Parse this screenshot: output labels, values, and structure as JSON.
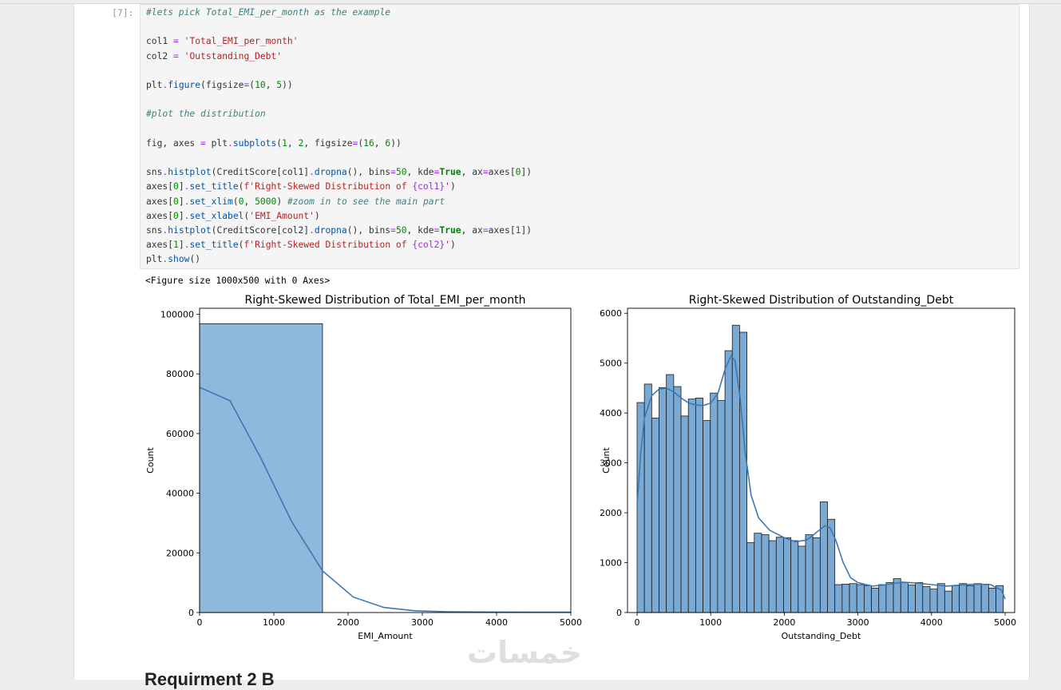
{
  "cell": {
    "prompt": "[7]:",
    "lines": [
      [
        {
          "t": "#lets pick Total_EMI_per_month as the example",
          "c": "c-comment"
        }
      ],
      [],
      [
        {
          "t": "col1 "
        },
        {
          "t": "=",
          "c": "c-op"
        },
        {
          "t": " "
        },
        {
          "t": "'Total_EMI_per_month'",
          "c": "c-str"
        }
      ],
      [
        {
          "t": "col2 "
        },
        {
          "t": "=",
          "c": "c-op"
        },
        {
          "t": " "
        },
        {
          "t": "'Outstanding_Debt'",
          "c": "c-str"
        }
      ],
      [],
      [
        {
          "t": "plt"
        },
        {
          "t": ".",
          "c": "c-op"
        },
        {
          "t": "figure",
          "c": "c-fn"
        },
        {
          "t": "(figsize"
        },
        {
          "t": "=",
          "c": "c-op"
        },
        {
          "t": "("
        },
        {
          "t": "10",
          "c": "c-num"
        },
        {
          "t": ", "
        },
        {
          "t": "5",
          "c": "c-num"
        },
        {
          "t": "))"
        }
      ],
      [],
      [
        {
          "t": "#plot the distribution",
          "c": "c-comment"
        }
      ],
      [],
      [
        {
          "t": "fig, axes "
        },
        {
          "t": "=",
          "c": "c-op"
        },
        {
          "t": " plt"
        },
        {
          "t": ".",
          "c": "c-op"
        },
        {
          "t": "subplots",
          "c": "c-fn"
        },
        {
          "t": "("
        },
        {
          "t": "1",
          "c": "c-num"
        },
        {
          "t": ", "
        },
        {
          "t": "2",
          "c": "c-num"
        },
        {
          "t": ", figsize"
        },
        {
          "t": "=",
          "c": "c-op"
        },
        {
          "t": "("
        },
        {
          "t": "16",
          "c": "c-num"
        },
        {
          "t": ", "
        },
        {
          "t": "6",
          "c": "c-num"
        },
        {
          "t": "))"
        }
      ],
      [],
      [
        {
          "t": "sns"
        },
        {
          "t": ".",
          "c": "c-op"
        },
        {
          "t": "histplot",
          "c": "c-fn"
        },
        {
          "t": "(CreditScore[col1]"
        },
        {
          "t": ".",
          "c": "c-op"
        },
        {
          "t": "dropna",
          "c": "c-fn"
        },
        {
          "t": "(), bins"
        },
        {
          "t": "=",
          "c": "c-op"
        },
        {
          "t": "50",
          "c": "c-num"
        },
        {
          "t": ", kde"
        },
        {
          "t": "=",
          "c": "c-op"
        },
        {
          "t": "True",
          "c": "c-kw"
        },
        {
          "t": ", ax"
        },
        {
          "t": "=",
          "c": "c-op"
        },
        {
          "t": "axes["
        },
        {
          "t": "0",
          "c": "c-num"
        },
        {
          "t": "])"
        }
      ],
      [
        {
          "t": "axes["
        },
        {
          "t": "0",
          "c": "c-num"
        },
        {
          "t": "]"
        },
        {
          "t": ".",
          "c": "c-op"
        },
        {
          "t": "set_title",
          "c": "c-fn"
        },
        {
          "t": "("
        },
        {
          "t": "f'Right-Skewed Distribution of ",
          "c": "c-str"
        },
        {
          "t": "{col1}",
          "c": "c-op"
        },
        {
          "t": "'",
          "c": "c-str"
        },
        {
          "t": ")"
        }
      ],
      [
        {
          "t": "axes["
        },
        {
          "t": "0",
          "c": "c-num"
        },
        {
          "t": "]"
        },
        {
          "t": ".",
          "c": "c-op"
        },
        {
          "t": "set_xlim",
          "c": "c-fn"
        },
        {
          "t": "("
        },
        {
          "t": "0",
          "c": "c-num"
        },
        {
          "t": ", "
        },
        {
          "t": "5000",
          "c": "c-num"
        },
        {
          "t": ") "
        },
        {
          "t": "#zoom in to see the main part",
          "c": "c-comment"
        }
      ],
      [
        {
          "t": "axes["
        },
        {
          "t": "0",
          "c": "c-num"
        },
        {
          "t": "]"
        },
        {
          "t": ".",
          "c": "c-op"
        },
        {
          "t": "set_xlabel",
          "c": "c-fn"
        },
        {
          "t": "("
        },
        {
          "t": "'EMI_Amount'",
          "c": "c-str"
        },
        {
          "t": ")"
        }
      ],
      [
        {
          "t": "sns"
        },
        {
          "t": ".",
          "c": "c-op"
        },
        {
          "t": "histplot",
          "c": "c-fn"
        },
        {
          "t": "(CreditScore[col2]"
        },
        {
          "t": ".",
          "c": "c-op"
        },
        {
          "t": "dropna",
          "c": "c-fn"
        },
        {
          "t": "(), bins"
        },
        {
          "t": "=",
          "c": "c-op"
        },
        {
          "t": "50",
          "c": "c-num"
        },
        {
          "t": ", kde"
        },
        {
          "t": "=",
          "c": "c-op"
        },
        {
          "t": "True",
          "c": "c-kw"
        },
        {
          "t": ", ax"
        },
        {
          "t": "=",
          "c": "c-op"
        },
        {
          "t": "axes["
        },
        {
          "t": "1",
          "c": "c-num"
        },
        {
          "t": "])"
        }
      ],
      [
        {
          "t": "axes["
        },
        {
          "t": "1",
          "c": "c-num"
        },
        {
          "t": "]"
        },
        {
          "t": ".",
          "c": "c-op"
        },
        {
          "t": "set_title",
          "c": "c-fn"
        },
        {
          "t": "("
        },
        {
          "t": "f'Right-Skewed Distribution of ",
          "c": "c-str"
        },
        {
          "t": "{col2}",
          "c": "c-op"
        },
        {
          "t": "'",
          "c": "c-str"
        },
        {
          "t": ")"
        }
      ],
      [
        {
          "t": "plt"
        },
        {
          "t": ".",
          "c": "c-op"
        },
        {
          "t": "show",
          "c": "c-fn"
        },
        {
          "t": "()"
        }
      ]
    ],
    "output_text": "<Figure size 1000x500 with 0 Axes>"
  },
  "chart_data": [
    {
      "type": "bar",
      "title": "Right-Skewed Distribution of Total_EMI_per_month",
      "xlabel": "EMI_Amount",
      "ylabel": "Count",
      "xlim": [
        0,
        5000
      ],
      "ylim": [
        0,
        102000
      ],
      "xticks": [
        0,
        1000,
        2000,
        3000,
        4000,
        5000
      ],
      "yticks": [
        0,
        20000,
        40000,
        60000,
        80000,
        100000
      ],
      "bars": [
        {
          "x0": 0,
          "x1": 1655,
          "count": 96800
        }
      ],
      "kde": [
        [
          0,
          75500
        ],
        [
          410,
          71000
        ],
        [
          820,
          52000
        ],
        [
          1240,
          30500
        ],
        [
          1655,
          14000
        ],
        [
          2070,
          5200
        ],
        [
          2480,
          1700
        ],
        [
          2900,
          600
        ],
        [
          3300,
          300
        ],
        [
          3700,
          200
        ],
        [
          4100,
          150
        ],
        [
          4500,
          120
        ],
        [
          5000,
          100
        ]
      ],
      "bar_color": "#8eb9dc",
      "line_color": "#3a78b4"
    },
    {
      "type": "bar",
      "title": "Right-Skewed Distribution of Outstanding_Debt",
      "xlabel": "Outstanding_Debt",
      "ylabel": "Count",
      "xlim": [
        -130,
        5130
      ],
      "ylim": [
        0,
        6100
      ],
      "xticks": [
        0,
        1000,
        2000,
        3000,
        4000,
        5000
      ],
      "yticks": [
        0,
        1000,
        2000,
        3000,
        4000,
        5000,
        6000
      ],
      "bin_start": 0,
      "bin_width": 99.5,
      "counts": [
        4210,
        4580,
        3900,
        4510,
        4770,
        4530,
        3940,
        4280,
        4300,
        3850,
        4400,
        4250,
        5250,
        5760,
        5620,
        1400,
        1590,
        1560,
        1440,
        1510,
        1500,
        1440,
        1330,
        1560,
        1500,
        2220,
        1870,
        560,
        570,
        580,
        560,
        540,
        490,
        560,
        600,
        680,
        600,
        550,
        600,
        520,
        470,
        580,
        430,
        540,
        580,
        540,
        580,
        570,
        490,
        540
      ],
      "kde": [
        [
          0,
          2150
        ],
        [
          50,
          3200
        ],
        [
          100,
          3900
        ],
        [
          200,
          4350
        ],
        [
          300,
          4480
        ],
        [
          400,
          4500
        ],
        [
          500,
          4420
        ],
        [
          600,
          4300
        ],
        [
          700,
          4200
        ],
        [
          800,
          4160
        ],
        [
          900,
          4150
        ],
        [
          1000,
          4200
        ],
        [
          1100,
          4400
        ],
        [
          1200,
          4900
        ],
        [
          1280,
          5150
        ],
        [
          1330,
          5050
        ],
        [
          1400,
          4300
        ],
        [
          1470,
          3200
        ],
        [
          1550,
          2350
        ],
        [
          1650,
          1900
        ],
        [
          1800,
          1650
        ],
        [
          2000,
          1500
        ],
        [
          2150,
          1420
        ],
        [
          2300,
          1450
        ],
        [
          2450,
          1620
        ],
        [
          2550,
          1740
        ],
        [
          2620,
          1700
        ],
        [
          2700,
          1450
        ],
        [
          2800,
          1000
        ],
        [
          2900,
          700
        ],
        [
          3000,
          600
        ],
        [
          3200,
          530
        ],
        [
          3400,
          560
        ],
        [
          3600,
          610
        ],
        [
          3800,
          590
        ],
        [
          4000,
          560
        ],
        [
          4200,
          530
        ],
        [
          4400,
          550
        ],
        [
          4600,
          570
        ],
        [
          4800,
          560
        ],
        [
          4950,
          450
        ],
        [
          5000,
          270
        ]
      ],
      "bar_color": "#7aaad3",
      "line_color": "#3a78b4"
    }
  ],
  "next_heading": "Requirment 2 B",
  "watermark": "خمسات"
}
